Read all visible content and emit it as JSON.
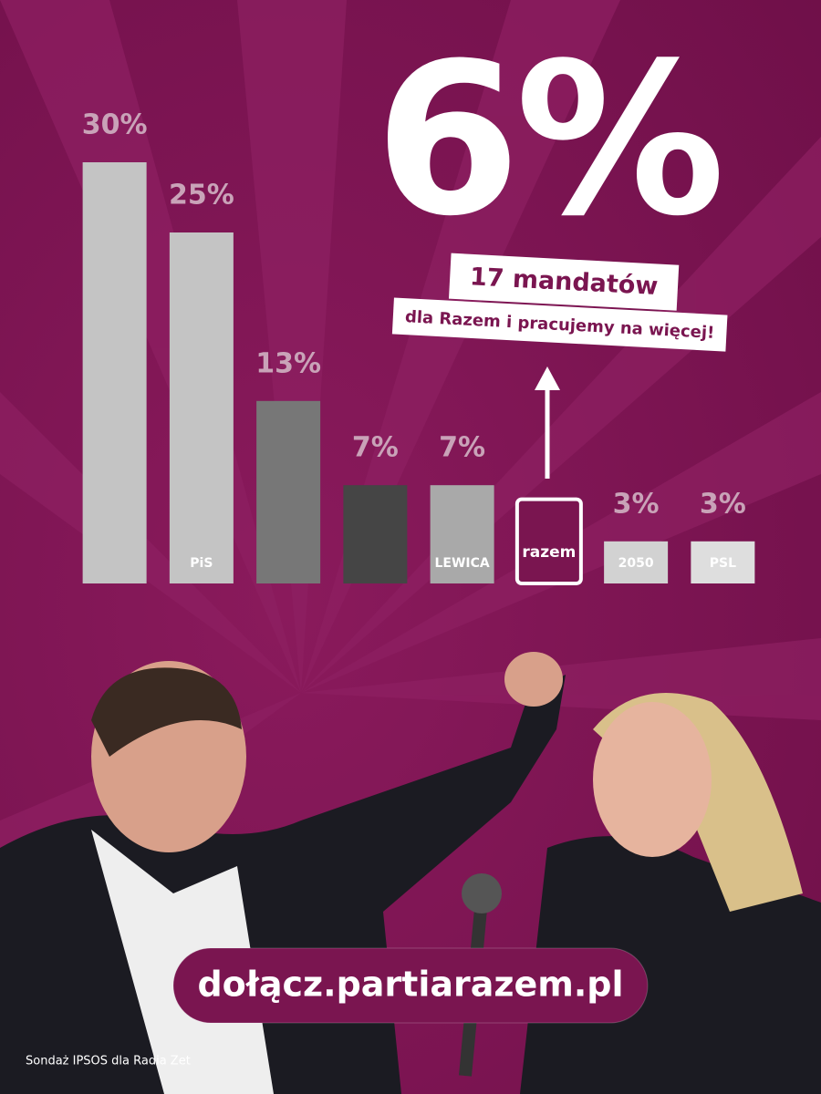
{
  "chart_data": {
    "type": "bar",
    "categories": [
      null,
      "PiS",
      null,
      null,
      "LEWICA",
      "razem",
      "2050",
      "PSL"
    ],
    "values": [
      30,
      25,
      13,
      7,
      7,
      6,
      3,
      3
    ],
    "value_labels": [
      "30%",
      "25%",
      "13%",
      "7%",
      "7%",
      "6%",
      "3%",
      "3%"
    ],
    "colors": [
      "#c4c4c4",
      "#c4c4c4",
      "#777777",
      "#454545",
      "#a9a9a9",
      "#7a1550",
      "#d2d2d2",
      "#dedede"
    ],
    "highlight": 5,
    "ylim": [
      0,
      30
    ],
    "annotation": {
      "title": "17 mandatów",
      "subtitle": "dla Razem i pracujemy na więcej!"
    },
    "footer": {
      "link": "dołącz.partiarazem.pl",
      "source": "Sondaż IPSOS dla Radia Zet"
    }
  }
}
